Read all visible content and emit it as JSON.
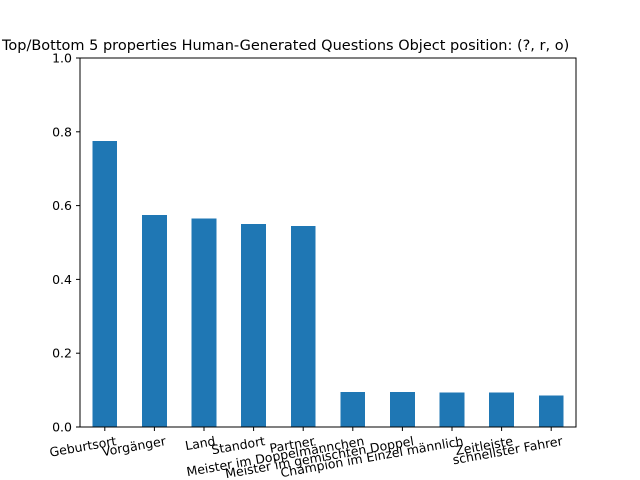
{
  "chart_data": {
    "type": "bar",
    "title": "Top/Bottom 5 properties Human-Generated Questions Object position: (?, r, o)",
    "xlabel": "",
    "ylabel": "",
    "categories": [
      "Geburtsort",
      "Vorgänger",
      "Land",
      "Standort",
      "Partner",
      "Meister im Doppelmännchen",
      "Meister im gemischten Doppel",
      "Champion im Einzel männlich",
      "Zeitleiste",
      "schnellster Fahrer"
    ],
    "values": [
      0.775,
      0.575,
      0.565,
      0.55,
      0.545,
      0.095,
      0.095,
      0.093,
      0.093,
      0.085
    ],
    "ylim": [
      0,
      1.0
    ],
    "yticks": [
      "0.0",
      "0.2",
      "0.4",
      "0.6",
      "0.8",
      "1.0"
    ],
    "bar_color": "#1f77b4",
    "grid": false,
    "legend": "none"
  }
}
